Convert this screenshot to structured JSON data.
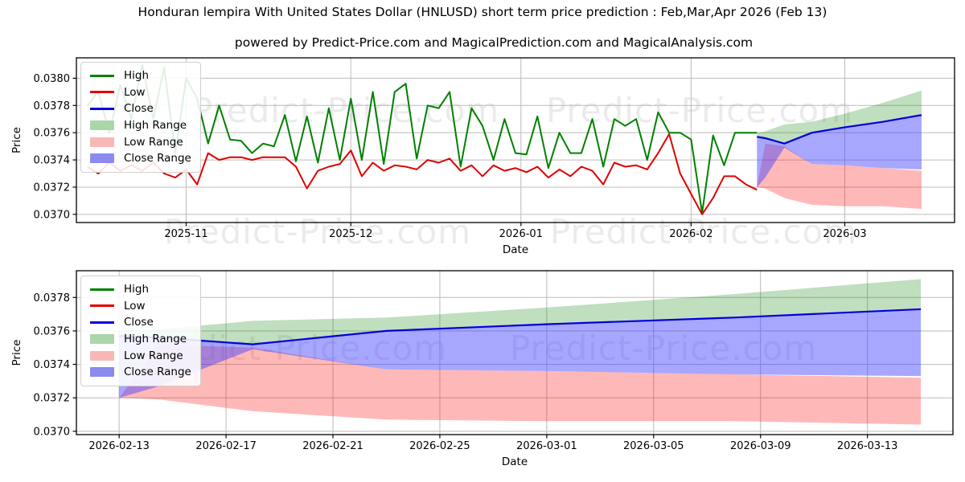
{
  "title": "Honduran lempira With United States Dollar (HNLUSD) short term price prediction : Feb,Mar,Apr 2026 (Feb 13)",
  "subtitle": "powered by Predict-Price.com and MagicalPrediction.com and MagicalAnalysis.com",
  "watermark": {
    "text": "Predict-Price.com"
  },
  "colors": {
    "high_line": "#008000",
    "low_line": "#e00000",
    "close_line": "#0000dd",
    "high_fill": "rgba(0,128,0,0.25)",
    "low_fill": "rgba(255,0,0,0.28)",
    "close_fill": "rgba(60,60,255,0.45)",
    "grid": "#bbbbbb",
    "spine": "#000000",
    "watermark": "rgba(90,90,90,0.12)"
  },
  "legend": {
    "items": [
      {
        "label": "High",
        "swatch": "line",
        "color": "#008000"
      },
      {
        "label": "Low",
        "swatch": "line",
        "color": "#e00000"
      },
      {
        "label": "Close",
        "swatch": "line",
        "color": "#0000dd"
      },
      {
        "label": "High Range",
        "swatch": "patch",
        "color": "#abd5ab"
      },
      {
        "label": "Low Range",
        "swatch": "patch",
        "color": "#f8b8b8"
      },
      {
        "label": "Close Range",
        "swatch": "patch",
        "color": "#8a8aef"
      }
    ]
  },
  "chart_data": [
    {
      "type": "line",
      "name": "overview",
      "xlabel": "Date",
      "ylabel": "Price",
      "x_base_date": "2025-10-12",
      "xlim": [
        0,
        160
      ],
      "ylim": [
        0.03694,
        0.03815
      ],
      "xticks": [
        {
          "day": 20,
          "label": "2025-11"
        },
        {
          "day": 50,
          "label": "2025-12"
        },
        {
          "day": 81,
          "label": "2026-01"
        },
        {
          "day": 112,
          "label": "2026-02"
        },
        {
          "day": 140,
          "label": "2026-03"
        }
      ],
      "yticks": [
        {
          "v": 0.037,
          "label": "0.0370"
        },
        {
          "v": 0.0372,
          "label": "0.0372"
        },
        {
          "v": 0.0374,
          "label": "0.0374"
        },
        {
          "v": 0.0376,
          "label": "0.0376"
        },
        {
          "v": 0.0378,
          "label": "0.0378"
        },
        {
          "v": 0.038,
          "label": "0.0380"
        }
      ],
      "history": {
        "start_day": 2,
        "step": 2,
        "high": [
          0.0378,
          0.0379,
          0.0376,
          0.03795,
          0.0377,
          0.0381,
          0.0377,
          0.03808,
          0.03745,
          0.038,
          0.03785,
          0.03752,
          0.0378,
          0.03755,
          0.03754,
          0.03745,
          0.03752,
          0.0375,
          0.03773,
          0.03739,
          0.03772,
          0.03738,
          0.03778,
          0.0374,
          0.03785,
          0.0374,
          0.0379,
          0.03737,
          0.0379,
          0.03796,
          0.03741,
          0.0378,
          0.03778,
          0.0379,
          0.03735,
          0.03778,
          0.03765,
          0.0374,
          0.0377,
          0.03745,
          0.03744,
          0.03772,
          0.03734,
          0.0376,
          0.03745,
          0.03745,
          0.0377,
          0.03735,
          0.0377,
          0.03765,
          0.0377,
          0.0374,
          0.03775,
          0.0376,
          0.0376,
          0.03755,
          0.03701,
          0.03758,
          0.03736,
          0.0376,
          0.0376,
          0.0376
        ],
        "low": [
          0.03735,
          0.0373,
          0.03738,
          0.03732,
          0.03736,
          0.03732,
          0.03738,
          0.0373,
          0.03727,
          0.03733,
          0.03722,
          0.03745,
          0.0374,
          0.03742,
          0.03742,
          0.0374,
          0.03742,
          0.03742,
          0.03742,
          0.03735,
          0.03719,
          0.03732,
          0.03735,
          0.03737,
          0.03747,
          0.03728,
          0.03738,
          0.03732,
          0.03736,
          0.03735,
          0.03733,
          0.0374,
          0.03738,
          0.03741,
          0.03732,
          0.03736,
          0.03728,
          0.03736,
          0.03732,
          0.03734,
          0.03731,
          0.03735,
          0.03727,
          0.03733,
          0.03728,
          0.03735,
          0.03732,
          0.03722,
          0.03738,
          0.03735,
          0.03736,
          0.03733,
          0.03745,
          0.03759,
          0.0373,
          0.03715,
          0.037,
          0.03712,
          0.03728,
          0.03728,
          0.03722,
          0.03718
        ]
      },
      "prediction": {
        "days": [
          124,
          125.5,
          129,
          134,
          140,
          147,
          154
        ],
        "close": [
          0.03757,
          0.03756,
          0.03752,
          0.0376,
          0.03764,
          0.03768,
          0.03773
        ],
        "high_top": [
          0.0376,
          0.03761,
          0.03766,
          0.03768,
          0.03774,
          0.03782,
          0.03791
        ],
        "close_bottom": [
          0.0372,
          0.03727,
          0.03749,
          0.03737,
          0.03736,
          0.03734,
          0.03733
        ],
        "low_top": [
          0.0372,
          0.03752,
          0.0375,
          0.03737,
          0.03736,
          0.03734,
          0.03732
        ],
        "low_bottom": [
          0.0372,
          0.03719,
          0.03712,
          0.03707,
          0.03706,
          0.03706,
          0.03704
        ]
      }
    },
    {
      "type": "line",
      "name": "forecast-detail",
      "xlabel": "Date",
      "ylabel": "Price",
      "x_base_date": "2025-10-12",
      "xlim": [
        122.4,
        155.2
      ],
      "ylim": [
        0.03698,
        0.03796
      ],
      "xticks": [
        {
          "day": 124,
          "label": "2026-02-13"
        },
        {
          "day": 128,
          "label": "2026-02-17"
        },
        {
          "day": 132,
          "label": "2026-02-21"
        },
        {
          "day": 136,
          "label": "2026-02-25"
        },
        {
          "day": 140,
          "label": "2026-03-01"
        },
        {
          "day": 144,
          "label": "2026-03-05"
        },
        {
          "day": 148,
          "label": "2026-03-09"
        },
        {
          "day": 152,
          "label": "2026-03-13"
        }
      ],
      "yticks": [
        {
          "v": 0.037,
          "label": "0.0370"
        },
        {
          "v": 0.0372,
          "label": "0.0372"
        },
        {
          "v": 0.0374,
          "label": "0.0374"
        },
        {
          "v": 0.0376,
          "label": "0.0376"
        },
        {
          "v": 0.0378,
          "label": "0.0378"
        }
      ],
      "prediction": {
        "days": [
          124,
          125.5,
          129,
          134,
          140,
          147,
          154
        ],
        "close": [
          0.03757,
          0.03756,
          0.03752,
          0.0376,
          0.03764,
          0.03768,
          0.03773
        ],
        "high_top": [
          0.0376,
          0.03761,
          0.03766,
          0.03768,
          0.03774,
          0.03782,
          0.03791
        ],
        "close_bottom": [
          0.0372,
          0.03727,
          0.03749,
          0.03737,
          0.03736,
          0.03734,
          0.03733
        ],
        "low_top": [
          0.0372,
          0.03752,
          0.0375,
          0.03737,
          0.03736,
          0.03734,
          0.03732
        ],
        "low_bottom": [
          0.0372,
          0.03719,
          0.03712,
          0.03707,
          0.03706,
          0.03706,
          0.03704
        ]
      }
    }
  ]
}
